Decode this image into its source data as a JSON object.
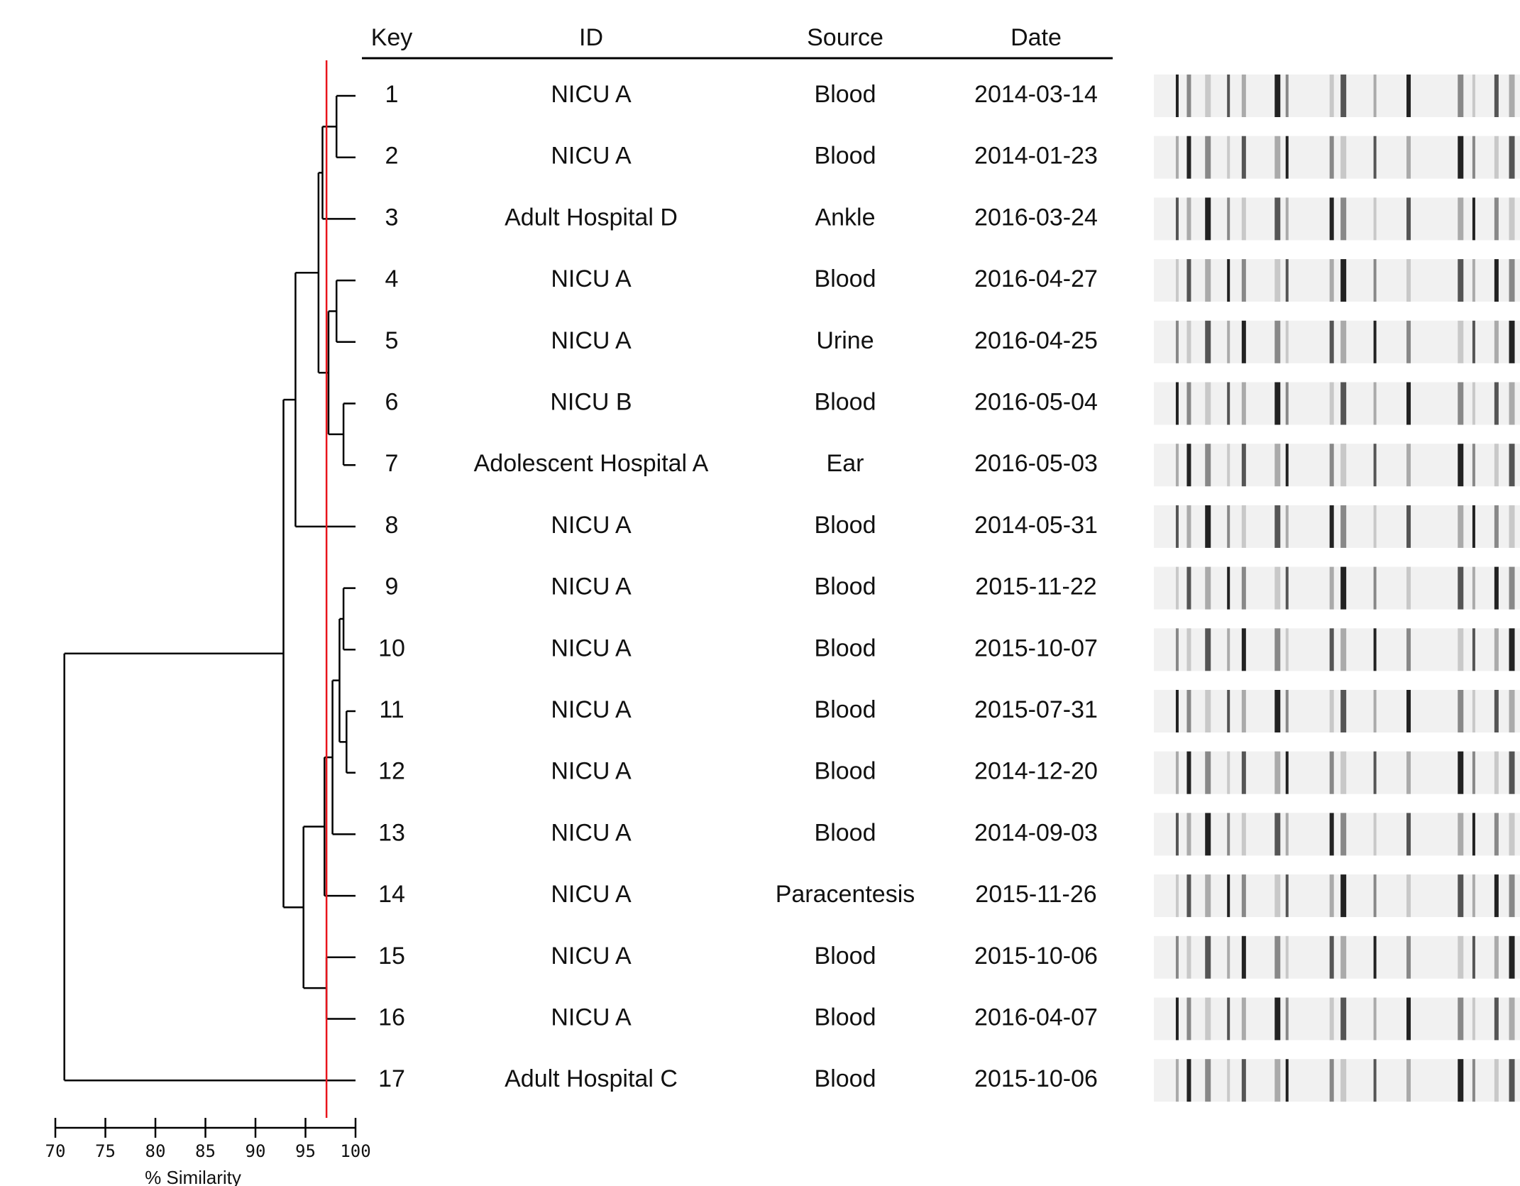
{
  "chart_data": {
    "type": "dendrogram",
    "xlabel": "% Similarity",
    "xlim": [
      70,
      100
    ],
    "xticks": [
      70,
      75,
      80,
      85,
      90,
      95,
      100
    ],
    "cutoff": 97.1,
    "cutoff_color": "#e8141b",
    "columns": [
      "Key",
      "ID",
      "Source",
      "Date"
    ],
    "rows": [
      [
        "1",
        "NICU A",
        "Blood",
        "2014-03-14"
      ],
      [
        "2",
        "NICU A",
        "Blood",
        "2014-01-23"
      ],
      [
        "3",
        "Adult Hospital D",
        "Ankle",
        "2016-03-24"
      ],
      [
        "4",
        "NICU A",
        "Blood",
        "2016-04-27"
      ],
      [
        "5",
        "NICU A",
        "Urine",
        "2016-04-25"
      ],
      [
        "6",
        "NICU B",
        "Blood",
        "2016-05-04"
      ],
      [
        "7",
        "Adolescent Hospital A",
        "Ear",
        "2016-05-03"
      ],
      [
        "8",
        "NICU A",
        "Blood",
        "2014-05-31"
      ],
      [
        "9",
        "NICU A",
        "Blood",
        "2015-11-22"
      ],
      [
        "10",
        "NICU A",
        "Blood",
        "2015-10-07"
      ],
      [
        "11",
        "NICU A",
        "Blood",
        "2015-07-31"
      ],
      [
        "12",
        "NICU A",
        "Blood",
        "2014-12-20"
      ],
      [
        "13",
        "NICU A",
        "Blood",
        "2014-09-03"
      ],
      [
        "14",
        "NICU A",
        "Paracentesis",
        "2015-11-26"
      ],
      [
        "15",
        "NICU A",
        "Blood",
        "2015-10-06"
      ],
      [
        "16",
        "NICU A",
        "Blood",
        "2016-04-07"
      ],
      [
        "17",
        "Adult Hospital C",
        "Blood",
        "2015-10-06"
      ]
    ],
    "merges": [
      {
        "children": [
          0,
          1
        ],
        "value": 98.1
      },
      {
        "children": [
          17,
          2
        ],
        "value": 96.7
      },
      {
        "children": [
          3,
          4
        ],
        "value": 98.1
      },
      {
        "children": [
          5,
          6
        ],
        "value": 98.8
      },
      {
        "children": [
          19,
          20
        ],
        "value": 97.3
      },
      {
        "children": [
          18,
          21
        ],
        "value": 96.3
      },
      {
        "children": [
          22,
          7
        ],
        "value": 94.0
      },
      {
        "children": [
          8,
          9
        ],
        "value": 98.8
      },
      {
        "children": [
          10,
          11
        ],
        "value": 99.1
      },
      {
        "children": [
          24,
          25
        ],
        "value": 98.4
      },
      {
        "children": [
          26,
          12
        ],
        "value": 97.7
      },
      {
        "children": [
          27,
          13
        ],
        "value": 96.9
      },
      {
        "children": [
          14,
          15
        ],
        "value": 97.1
      },
      {
        "children": [
          28,
          29
        ],
        "value": 94.8
      },
      {
        "children": [
          23,
          30
        ],
        "value": 92.8
      },
      {
        "children": [
          31,
          16
        ],
        "value": 70.9
      }
    ]
  }
}
